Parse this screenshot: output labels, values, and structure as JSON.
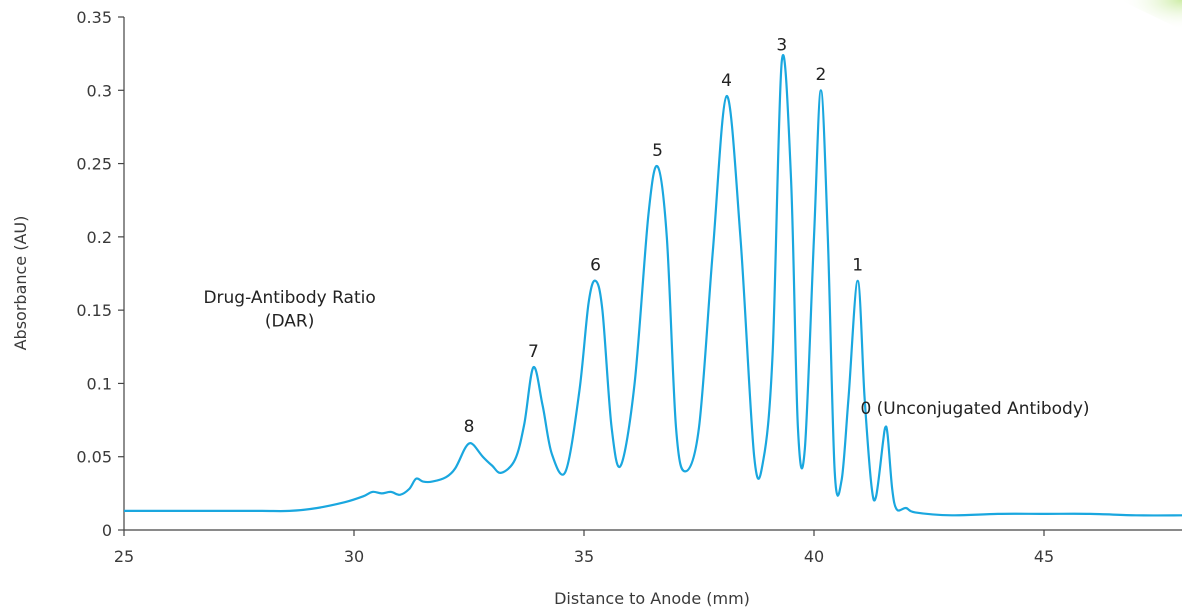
{
  "chart_data": {
    "type": "line",
    "title": "",
    "xlabel": "Distance to Anode (mm)",
    "ylabel": "Absorbance (AU)",
    "xlim": [
      25,
      48
    ],
    "ylim": [
      0,
      0.35
    ],
    "x_ticks": [
      25,
      30,
      35,
      40,
      45
    ],
    "x_tick_labels": [
      "25",
      "30",
      "35",
      "40",
      "45"
    ],
    "y_ticks": [
      0,
      0.05,
      0.1,
      0.15,
      0.2,
      0.25,
      0.3,
      0.35
    ],
    "y_tick_labels": [
      "0",
      "0.05",
      "0.1",
      "0.15",
      "0.2",
      "0.25",
      "0.3",
      "0.35"
    ],
    "grid": false,
    "series": [
      {
        "color": "#1aa7df",
        "x": [
          25.0,
          26.0,
          27.0,
          28.0,
          28.6,
          29.2,
          29.8,
          30.2,
          30.4,
          30.6,
          30.8,
          31.0,
          31.2,
          31.35,
          31.5,
          31.7,
          32.0,
          32.2,
          32.4,
          32.5,
          32.6,
          32.8,
          33.0,
          33.2,
          33.5,
          33.7,
          33.9,
          34.1,
          34.3,
          34.6,
          34.9,
          35.1,
          35.25,
          35.4,
          35.6,
          35.8,
          36.1,
          36.4,
          36.6,
          36.8,
          37.0,
          37.2,
          37.5,
          37.8,
          38.1,
          38.4,
          38.7,
          38.9,
          39.1,
          39.3,
          39.5,
          39.65,
          39.8,
          40.0,
          40.15,
          40.3,
          40.45,
          40.6,
          40.75,
          40.95,
          41.1,
          41.25,
          41.35,
          41.5,
          41.55,
          41.6,
          41.7,
          41.8,
          42.0,
          42.2,
          43.0,
          44.0,
          45.0,
          46.0,
          47.0,
          48.0
        ],
        "y": [
          0.013,
          0.013,
          0.013,
          0.013,
          0.013,
          0.015,
          0.019,
          0.023,
          0.026,
          0.025,
          0.026,
          0.024,
          0.028,
          0.035,
          0.033,
          0.033,
          0.036,
          0.042,
          0.055,
          0.059,
          0.058,
          0.05,
          0.044,
          0.039,
          0.048,
          0.072,
          0.111,
          0.085,
          0.052,
          0.04,
          0.095,
          0.155,
          0.17,
          0.15,
          0.07,
          0.044,
          0.1,
          0.215,
          0.248,
          0.2,
          0.07,
          0.04,
          0.07,
          0.19,
          0.296,
          0.2,
          0.05,
          0.048,
          0.12,
          0.32,
          0.24,
          0.07,
          0.055,
          0.2,
          0.3,
          0.2,
          0.04,
          0.034,
          0.09,
          0.17,
          0.09,
          0.03,
          0.023,
          0.06,
          0.07,
          0.065,
          0.028,
          0.014,
          0.015,
          0.012,
          0.01,
          0.011,
          0.011,
          0.011,
          0.01,
          0.01
        ]
      }
    ],
    "annotations": [
      {
        "text": "Drug-Antibody Ratio",
        "x": 28.6,
        "y": 0.155
      },
      {
        "text": "(DAR)",
        "x": 28.6,
        "y": 0.139
      },
      {
        "text": "8",
        "x": 32.5,
        "y": 0.067
      },
      {
        "text": "7",
        "x": 33.9,
        "y": 0.118
      },
      {
        "text": "6",
        "x": 35.25,
        "y": 0.177
      },
      {
        "text": "5",
        "x": 36.6,
        "y": 0.255
      },
      {
        "text": "4",
        "x": 38.1,
        "y": 0.303
      },
      {
        "text": "3",
        "x": 39.3,
        "y": 0.327
      },
      {
        "text": "2",
        "x": 40.15,
        "y": 0.307
      },
      {
        "text": "1",
        "x": 40.95,
        "y": 0.177
      },
      {
        "text": "0 (Unconjugated Antibody)",
        "x": 43.5,
        "y": 0.079
      }
    ]
  }
}
